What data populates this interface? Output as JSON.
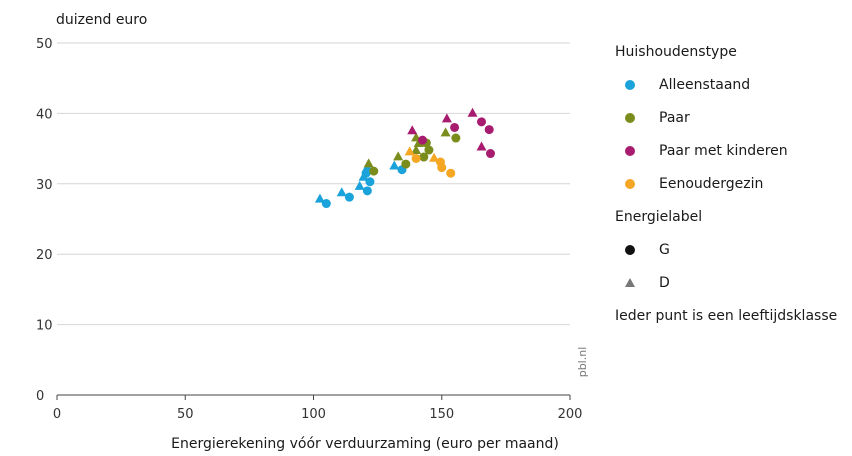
{
  "chart_data": {
    "type": "scatter",
    "title": "",
    "ylabel": "duizend euro",
    "xlabel": "Energierekening vóór verduurzaming (euro per maand)",
    "xlim": [
      0,
      200
    ],
    "ylim": [
      0,
      50
    ],
    "xticks": [
      0,
      50,
      100,
      150,
      200
    ],
    "yticks": [
      0,
      10,
      20,
      30,
      40,
      50
    ],
    "xtick_labels": [
      "0",
      "50",
      "100",
      "150",
      "200"
    ],
    "ytick_labels": [
      "0",
      "10",
      "20",
      "30",
      "40",
      "50"
    ],
    "grid": "horizontal",
    "legend_position": "right",
    "watermark": "pbl.nl",
    "legend_household_title": "Huishoudenstype",
    "legend_label_title": "Energielabel",
    "note": "Ieder punt is een leeftijdsklasse",
    "marker_legend": [
      {
        "label": "G",
        "marker": "circle"
      },
      {
        "label": "D",
        "marker": "triangle"
      }
    ],
    "series": [
      {
        "name": "Alleenstaand",
        "color": "#1aa2db",
        "points": [
          {
            "x": 105,
            "y": 27.2,
            "label": "G"
          },
          {
            "x": 114,
            "y": 28.1,
            "label": "G"
          },
          {
            "x": 121,
            "y": 29.0,
            "label": "G"
          },
          {
            "x": 122,
            "y": 30.3,
            "label": "G"
          },
          {
            "x": 134.5,
            "y": 32.0,
            "label": "G"
          },
          {
            "x": 120.5,
            "y": 31.5,
            "label": "G"
          },
          {
            "x": 102.5,
            "y": 27.9,
            "label": "D"
          },
          {
            "x": 111,
            "y": 28.8,
            "label": "D"
          },
          {
            "x": 118,
            "y": 29.7,
            "label": "D"
          },
          {
            "x": 119.5,
            "y": 31.0,
            "label": "D"
          },
          {
            "x": 121,
            "y": 32.4,
            "label": "D"
          },
          {
            "x": 131.5,
            "y": 32.6,
            "label": "D"
          }
        ]
      },
      {
        "name": "Paar",
        "color": "#7a8c1c",
        "points": [
          {
            "x": 123.5,
            "y": 31.8,
            "label": "G"
          },
          {
            "x": 136,
            "y": 32.8,
            "label": "G"
          },
          {
            "x": 143,
            "y": 33.8,
            "label": "G"
          },
          {
            "x": 145,
            "y": 34.8,
            "label": "G"
          },
          {
            "x": 144,
            "y": 35.8,
            "label": "G"
          },
          {
            "x": 155.5,
            "y": 36.5,
            "label": "G"
          },
          {
            "x": 121.5,
            "y": 32.9,
            "label": "D"
          },
          {
            "x": 133,
            "y": 33.9,
            "label": "D"
          },
          {
            "x": 140,
            "y": 34.8,
            "label": "D"
          },
          {
            "x": 141,
            "y": 35.8,
            "label": "D"
          },
          {
            "x": 140,
            "y": 36.6,
            "label": "D"
          },
          {
            "x": 151.5,
            "y": 37.3,
            "label": "D"
          }
        ]
      },
      {
        "name": "Paar met kinderen",
        "color": "#a81c6f",
        "points": [
          {
            "x": 142.5,
            "y": 36.2,
            "label": "G"
          },
          {
            "x": 155,
            "y": 38.0,
            "label": "G"
          },
          {
            "x": 165.5,
            "y": 38.8,
            "label": "G"
          },
          {
            "x": 168.5,
            "y": 37.7,
            "label": "G"
          },
          {
            "x": 169,
            "y": 34.3,
            "label": "G"
          },
          {
            "x": 138.5,
            "y": 37.6,
            "label": "D"
          },
          {
            "x": 152,
            "y": 39.3,
            "label": "D"
          },
          {
            "x": 162,
            "y": 40.1,
            "label": "D"
          },
          {
            "x": 165.5,
            "y": 35.3,
            "label": "D"
          }
        ]
      },
      {
        "name": "Eenoudergezin",
        "color": "#f5a623",
        "points": [
          {
            "x": 140,
            "y": 33.6,
            "label": "G"
          },
          {
            "x": 150,
            "y": 32.3,
            "label": "G"
          },
          {
            "x": 153.5,
            "y": 31.5,
            "label": "G"
          },
          {
            "x": 149.5,
            "y": 33.1,
            "label": "G"
          },
          {
            "x": 137.5,
            "y": 34.6,
            "label": "D"
          },
          {
            "x": 147,
            "y": 33.7,
            "label": "D"
          }
        ]
      }
    ]
  }
}
